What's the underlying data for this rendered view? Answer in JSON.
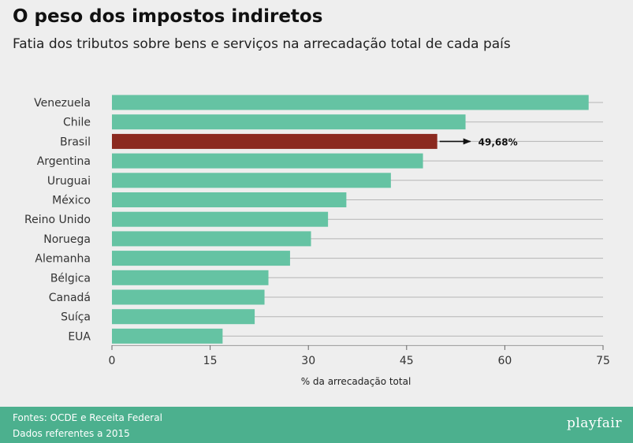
{
  "header": {
    "title": "O peso dos impostos indiretos",
    "subtitle": "Fatia dos tributos sobre bens e serviços na arrecadação total de cada país"
  },
  "footer": {
    "source_line": "Fontes: OCDE e Receita Federal",
    "date_line": "Dados referentes a 2015",
    "logo": "playfair"
  },
  "colors": {
    "bar": "#65c3a3",
    "highlight": "#8b2a20",
    "footer": "#4cb08e"
  },
  "chart_data": {
    "type": "bar",
    "orientation": "horizontal",
    "categories": [
      "Venezuela",
      "Chile",
      "Brasil",
      "Argentina",
      "Uruguai",
      "México",
      "Reino Unido",
      "Noruega",
      "Alemanha",
      "Bélgica",
      "Canadá",
      "Suíça",
      "EUA"
    ],
    "values": [
      72.8,
      54.0,
      49.68,
      47.5,
      42.6,
      35.8,
      33.0,
      30.4,
      27.2,
      23.9,
      23.3,
      21.8,
      16.9
    ],
    "highlight_category": "Brasil",
    "annotation": "49,68%",
    "xlabel": "% da arrecadação total",
    "xlim": [
      0,
      75
    ],
    "xticks": [
      0,
      15,
      30,
      45,
      60,
      75
    ],
    "grid": true
  }
}
